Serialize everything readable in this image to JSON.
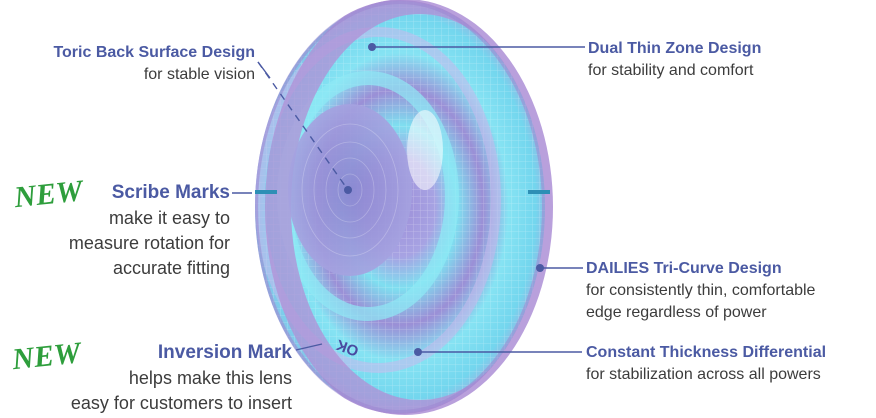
{
  "callouts": {
    "toric": {
      "title": "Toric Back Surface Design",
      "sub": "for stable vision"
    },
    "dual": {
      "title": "Dual Thin Zone Design",
      "sub": "for stability and comfort"
    },
    "scribe": {
      "badge": "NEW",
      "title": "Scribe Marks",
      "sub1": "make it easy to",
      "sub2": "measure rotation for",
      "sub3": "accurate fitting"
    },
    "tricurve": {
      "title": "DAILIES Tri-Curve Design",
      "sub1": "for consistently thin, comfortable",
      "sub2": "edge regardless of power"
    },
    "inversion": {
      "badge": "NEW",
      "title": "Inversion Mark",
      "sub1": "helps make this lens",
      "sub2": "easy for customers to insert"
    },
    "constant": {
      "title": "Constant Thickness Differential",
      "sub": "for stabilization across all powers"
    }
  },
  "lens": {
    "inversion_mark_text": "OK"
  },
  "colors": {
    "title_blue": "#4b5aa3",
    "new_green": "#2e9e3c",
    "lens_purple": "#a98bd0",
    "lens_cyan": "#6ee0f2"
  }
}
